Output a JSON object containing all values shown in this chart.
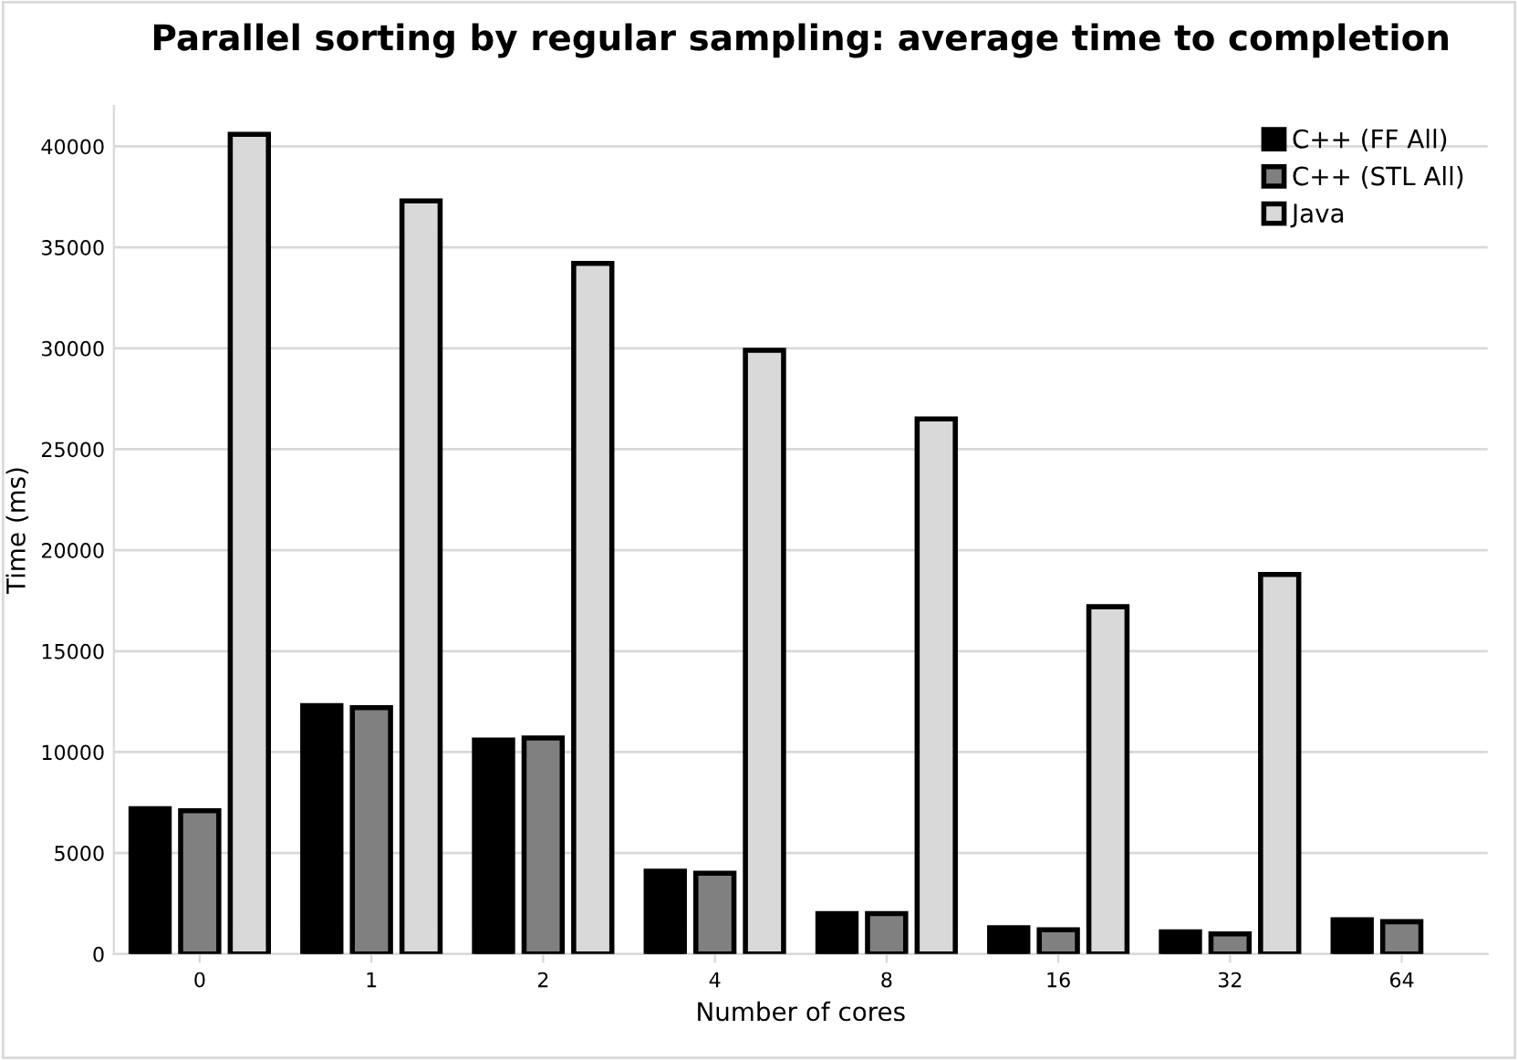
{
  "chart_data": {
    "type": "bar",
    "title": "Parallel sorting by regular sampling: average time to completion",
    "xlabel": "Number of cores",
    "ylabel": "Time (ms)",
    "categories": [
      "0",
      "1",
      "2",
      "4",
      "8",
      "16",
      "32",
      "64"
    ],
    "series": [
      {
        "name": "C++ (FF All)",
        "color": "#000000",
        "values": [
          7200,
          12300,
          10600,
          4100,
          2000,
          1300,
          1100,
          1700
        ]
      },
      {
        "name": "C++ (STL All)",
        "color": "#808080",
        "values": [
          7100,
          12200,
          10700,
          4000,
          2000,
          1200,
          1000,
          1600
        ]
      },
      {
        "name": "Java",
        "color": "#d9d9d9",
        "values": [
          40600,
          37300,
          34200,
          29900,
          26500,
          17200,
          18800,
          null
        ]
      }
    ],
    "ylim": [
      0,
      42000
    ],
    "yticks": [
      0,
      5000,
      10000,
      15000,
      20000,
      25000,
      30000,
      35000,
      40000
    ],
    "grid": "y",
    "legend": "top right"
  }
}
